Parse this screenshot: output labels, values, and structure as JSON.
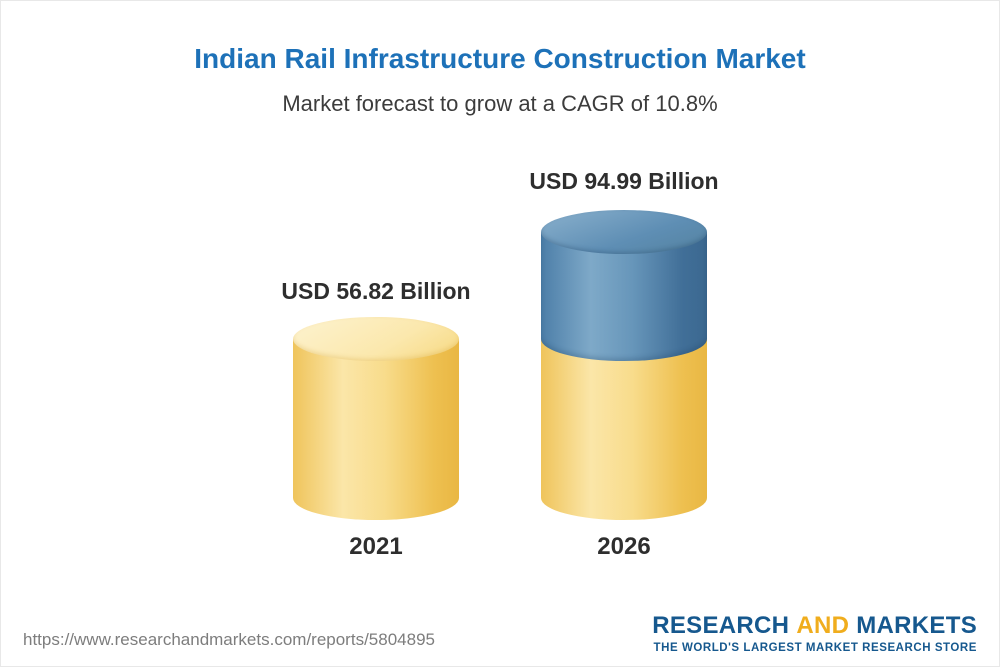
{
  "header": {
    "title": "Indian Rail Infrastructure Construction Market",
    "subtitle": "Market forecast to grow at a CAGR of 10.8%"
  },
  "chart_data": {
    "type": "bar",
    "subtype": "3d-cylinder",
    "categories": [
      "2021",
      "2026"
    ],
    "values": [
      56.82,
      94.99
    ],
    "unit": "USD Billion",
    "value_labels": [
      "USD 56.82 Billion",
      "USD 94.99 Billion"
    ],
    "cagr_percent": 10.8,
    "ylim": [
      0,
      100
    ],
    "grid": false,
    "legend": "none",
    "series_note": "2026 bar is drawn stacked: base portion equal to the 2021 value in yellow, incremental growth portion in blue"
  },
  "colors": {
    "title-blue": "#1d71b8",
    "subtitle-gray": "#3c3c3c",
    "label-dark": "#2e2e2e",
    "bar-yellow": "#f6d173",
    "bar-blue": "#4d7fa9",
    "footer-gray": "#7d7d7d",
    "logo-blue": "#16588e",
    "logo-gold": "#f0ad1d"
  },
  "footer": {
    "url": "https://www.researchandmarkets.com/reports/5804895",
    "logo": {
      "word1": "RESEARCH",
      "word2": "AND",
      "word3": "MARKETS",
      "tagline": "THE WORLD'S LARGEST MARKET RESEARCH STORE"
    }
  }
}
